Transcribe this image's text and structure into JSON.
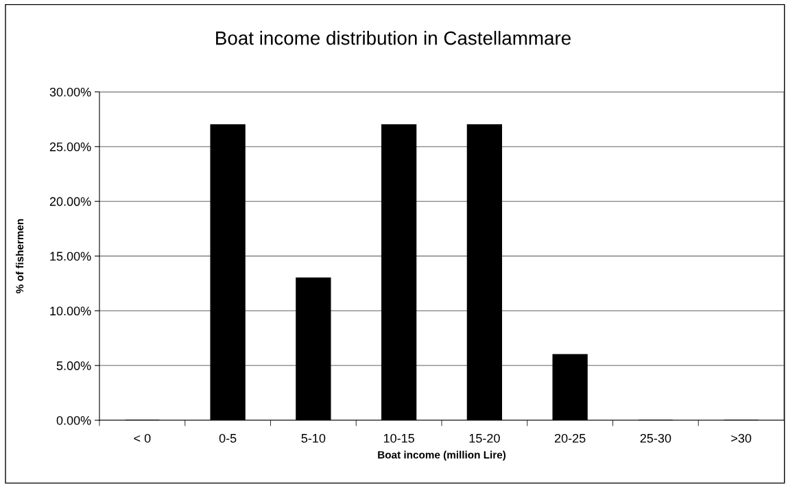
{
  "chart_data": {
    "type": "bar",
    "title": "Boat income distribution in Castellammare",
    "xlabel": "Boat income (million Lire)",
    "ylabel": "% of fishermen",
    "categories": [
      "< 0",
      "0-5",
      "5-10",
      "10-15",
      "15-20",
      "20-25",
      "25-30",
      ">30"
    ],
    "values": [
      0,
      27,
      13,
      27,
      27,
      6,
      0,
      0
    ],
    "color": "#000000",
    "ylim": [
      0,
      30
    ],
    "yticks": [
      {
        "value": 0,
        "label": "0.00%"
      },
      {
        "value": 5,
        "label": "5.00%"
      },
      {
        "value": 10,
        "label": "10.00%"
      },
      {
        "value": 15,
        "label": "15.00%"
      },
      {
        "value": 20,
        "label": "20.00%"
      },
      {
        "value": 25,
        "label": "25.00%"
      },
      {
        "value": 30,
        "label": "30.00%"
      }
    ],
    "grid": "y",
    "legend": false
  }
}
